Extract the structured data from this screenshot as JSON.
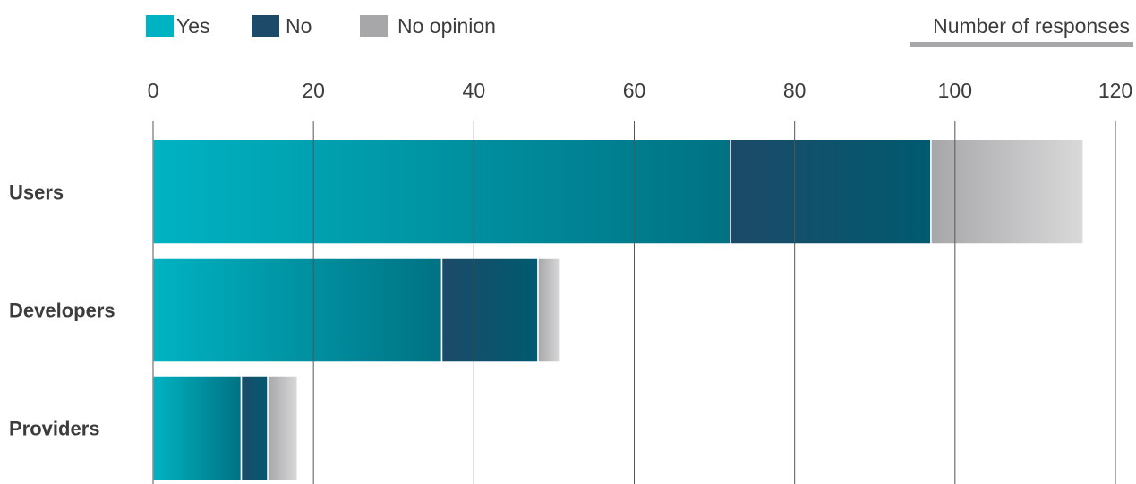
{
  "colors": {
    "yes": "#00b3c2",
    "yes_dark": "#007283",
    "no": "#1c4a68",
    "no_dark": "#005a70",
    "no_opinion": "#a7a7aa",
    "no_opinion_light": "#d9d9d9",
    "axis_underline": "#a7a7aa",
    "gridline": "#555555",
    "text": "#3c3c3c"
  },
  "chart_data": {
    "type": "bar",
    "orientation": "horizontal",
    "stacked": true,
    "title": "",
    "xlabel": "Number of responses",
    "ylabel": "",
    "xlim": [
      0,
      120
    ],
    "x_ticks": [
      0,
      20,
      40,
      60,
      80,
      100,
      120
    ],
    "grid": true,
    "legend_position": "top-left",
    "categories": [
      "Users",
      "Developers",
      "Providers"
    ],
    "series": [
      {
        "name": "Yes",
        "values": [
          72,
          36,
          11
        ],
        "color_key": "yes"
      },
      {
        "name": "No",
        "values": [
          25,
          12,
          3.3
        ],
        "color_key": "no"
      },
      {
        "name": "No opinion",
        "values": [
          19,
          2.8,
          3.7
        ],
        "color_key": "no_opinion"
      }
    ]
  }
}
